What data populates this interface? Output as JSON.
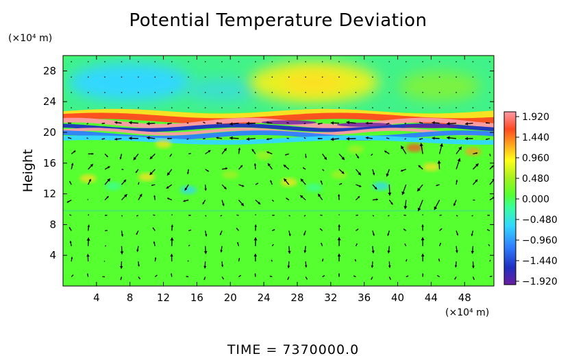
{
  "chart_data": {
    "type": "heatmap",
    "title": "Potential Temperature Deviation",
    "xlabel": "",
    "ylabel": "Height",
    "x_unit": "(×10⁴ m)",
    "y_unit": "(×10⁴ m)",
    "xlim": [
      0,
      51.5
    ],
    "ylim": [
      0,
      30
    ],
    "x_ticks": [
      "4",
      "8",
      "12",
      "16",
      "20",
      "24",
      "28",
      "32",
      "36",
      "40",
      "44",
      "48"
    ],
    "y_ticks": [
      "4",
      "8",
      "12",
      "16",
      "20",
      "24",
      "28"
    ],
    "colorbar": {
      "min": -1.92,
      "max": 1.92,
      "labels": [
        "1.920",
        "1.440",
        "0.960",
        "0.480",
        "0.000",
        "−0.480",
        "−0.960",
        "−1.440",
        "−1.920"
      ],
      "colors": [
        "#6a1fa0",
        "#1f2fc0",
        "#2f7fff",
        "#33d7ff",
        "#3aff9a",
        "#55ff30",
        "#a8f020",
        "#ffff1a",
        "#ffb020",
        "#ff4a20",
        "#ff9aa8"
      ]
    },
    "features": {
      "background_value": 0.12,
      "upper_cold_cells": [
        {
          "x": 8,
          "y": 26.5,
          "value": -0.45
        }
      ],
      "upper_warm_cells": [
        {
          "x": 30,
          "y": 26.5,
          "value": 0.7
        }
      ],
      "shear_layer": {
        "y_center": 20.5,
        "amplitude": 1.92
      },
      "vector_field": "wind vectors overlaid on grid"
    },
    "footer": "TIME  =  7370000.0"
  }
}
